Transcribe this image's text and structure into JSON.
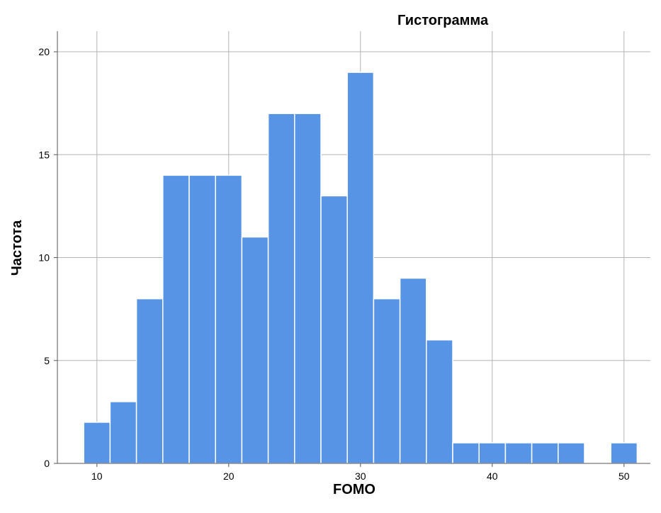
{
  "chart_data": {
    "type": "bar",
    "title": "Гистограмма",
    "xlabel": "FOMO",
    "ylabel": "Частота",
    "bin_width": 2,
    "xlim": [
      7,
      52
    ],
    "ylim": [
      0,
      21
    ],
    "xticks": [
      10,
      20,
      30,
      40,
      50
    ],
    "yticks": [
      0,
      5,
      10,
      15,
      20
    ],
    "grid": true,
    "bar_color": "#5794e5",
    "bar_edge_color": "#ffffff",
    "grid_color": "#b4b4b4",
    "axis_color": "#555555",
    "bins": [
      {
        "x0": 9,
        "x1": 11,
        "count": 2
      },
      {
        "x0": 11,
        "x1": 13,
        "count": 3
      },
      {
        "x0": 13,
        "x1": 15,
        "count": 8
      },
      {
        "x0": 15,
        "x1": 17,
        "count": 14
      },
      {
        "x0": 17,
        "x1": 19,
        "count": 14
      },
      {
        "x0": 19,
        "x1": 21,
        "count": 14
      },
      {
        "x0": 21,
        "x1": 23,
        "count": 11
      },
      {
        "x0": 23,
        "x1": 25,
        "count": 17
      },
      {
        "x0": 25,
        "x1": 27,
        "count": 17
      },
      {
        "x0": 27,
        "x1": 29,
        "count": 13
      },
      {
        "x0": 29,
        "x1": 31,
        "count": 19
      },
      {
        "x0": 31,
        "x1": 33,
        "count": 8
      },
      {
        "x0": 33,
        "x1": 35,
        "count": 9
      },
      {
        "x0": 35,
        "x1": 37,
        "count": 6
      },
      {
        "x0": 37,
        "x1": 39,
        "count": 1
      },
      {
        "x0": 39,
        "x1": 41,
        "count": 1
      },
      {
        "x0": 41,
        "x1": 43,
        "count": 1
      },
      {
        "x0": 43,
        "x1": 45,
        "count": 1
      },
      {
        "x0": 45,
        "x1": 47,
        "count": 1
      },
      {
        "x0": 47,
        "x1": 49,
        "count": 0
      },
      {
        "x0": 49,
        "x1": 51,
        "count": 1
      }
    ]
  }
}
